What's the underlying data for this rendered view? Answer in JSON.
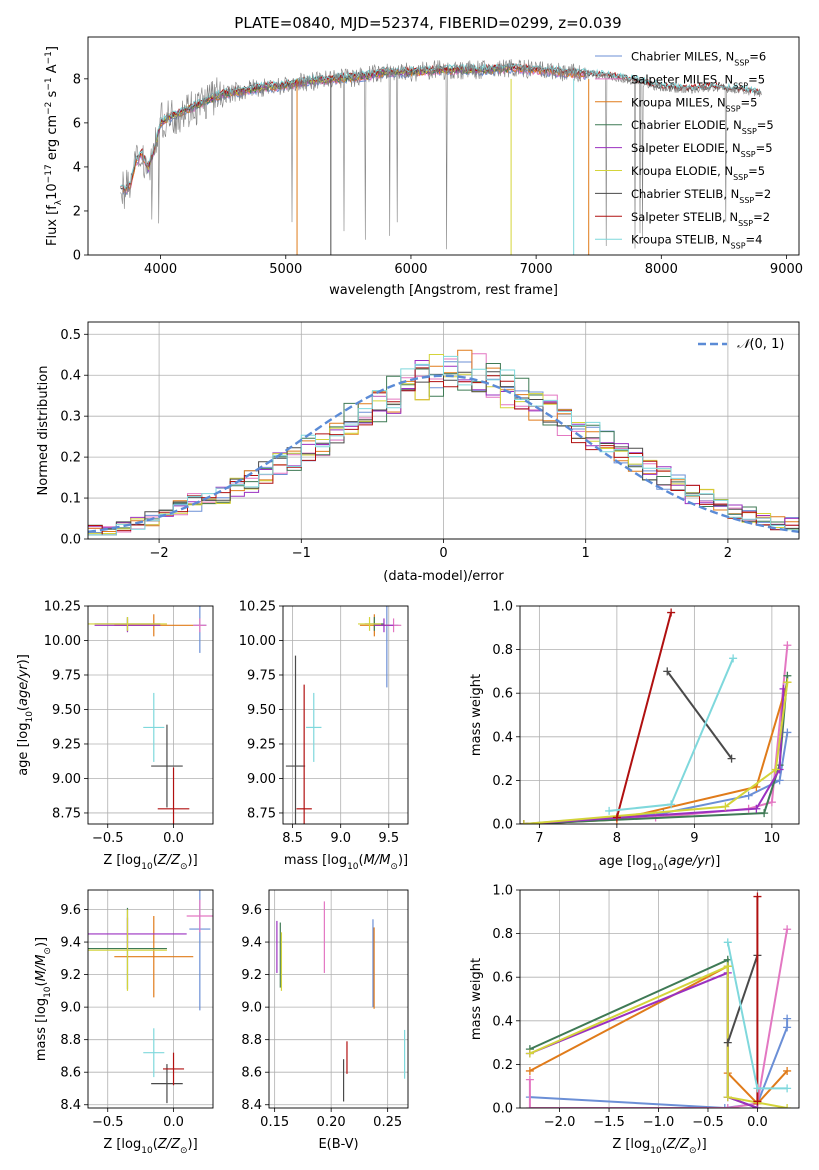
{
  "figure_title": "PLATE=0840, MJD=52374, FIBERID=0299, z=0.039",
  "colors": {
    "grid": "#b0b0b0",
    "data_grey": "#808080",
    "normal_curve": "#5b8bd6",
    "Chabrier MILES": "#6b8fd6",
    "Salpeter MILES": "#e377c2",
    "Kroupa MILES": "#e07b1a",
    "Chabrier ELODIE": "#3f7a55",
    "Salpeter ELODIE": "#9b30c0",
    "Kroupa ELODIE": "#d4d43a",
    "Chabrier STELIB": "#4a4a4a",
    "Salpeter STELIB": "#b01010",
    "Kroupa STELIB": "#7fd8dc"
  },
  "legend": [
    {
      "name": "Chabrier MILES",
      "label": "Chabrier MILES, N",
      "sub": "SSP",
      "tail": "=6"
    },
    {
      "name": "Salpeter MILES",
      "label": "Salpeter MILES, N",
      "sub": "SSP",
      "tail": "=5"
    },
    {
      "name": "Kroupa MILES",
      "label": "Kroupa MILES, N",
      "sub": "SSP",
      "tail": "=5"
    },
    {
      "name": "Chabrier ELODIE",
      "label": "Chabrier ELODIE, N",
      "sub": "SSP",
      "tail": "=5"
    },
    {
      "name": "Salpeter ELODIE",
      "label": "Salpeter ELODIE, N",
      "sub": "SSP",
      "tail": "=5"
    },
    {
      "name": "Kroupa ELODIE",
      "label": "Kroupa ELODIE, N",
      "sub": "SSP",
      "tail": "=5"
    },
    {
      "name": "Chabrier STELIB",
      "label": "Chabrier STELIB, N",
      "sub": "SSP",
      "tail": "=2"
    },
    {
      "name": "Salpeter STELIB",
      "label": "Salpeter STELIB, N",
      "sub": "SSP",
      "tail": "=2"
    },
    {
      "name": "Kroupa STELIB",
      "label": "Kroupa STELIB, N",
      "sub": "SSP",
      "tail": "=4"
    }
  ],
  "chart_data": [
    {
      "id": "spectrum",
      "type": "line",
      "xlabel": "wavelength [Angstrom, rest frame]",
      "ylabel": "Flux [fλ10⁻¹⁷ erg cm⁻² s⁻¹ A⁻¹]",
      "xlim": [
        3420,
        9100
      ],
      "ylim": [
        0,
        9.9
      ],
      "xticks": [
        4000,
        5000,
        6000,
        7000,
        8000,
        9000
      ],
      "yticks": [
        0,
        2,
        4,
        6,
        8
      ],
      "grid": false,
      "legend_position": "upper right",
      "continuum": {
        "x": [
          3680,
          3720,
          3760,
          3800,
          3850,
          3900,
          3950,
          4000,
          4050,
          4100,
          4200,
          4300,
          4400,
          4500,
          4600,
          4800,
          5000,
          5200,
          5400,
          5600,
          5800,
          6000,
          6200,
          6400,
          6600,
          6800,
          7000,
          7200,
          7400,
          7600,
          7800,
          8000,
          8200,
          8400,
          8600,
          8800
        ],
        "y": [
          3.1,
          2.9,
          3.2,
          4.2,
          4.6,
          3.9,
          4.8,
          6.0,
          6.2,
          6.3,
          6.6,
          6.8,
          7.1,
          7.3,
          7.4,
          7.6,
          7.7,
          7.9,
          8.0,
          8.1,
          8.3,
          8.3,
          8.4,
          8.4,
          8.4,
          8.5,
          8.4,
          8.3,
          8.2,
          8.1,
          7.9,
          7.6,
          7.5,
          7.6,
          7.5,
          7.3
        ]
      },
      "series": [
        {
          "name": "Chabrier MILES",
          "x_range": [
            3700,
            7400
          ]
        },
        {
          "name": "Salpeter MILES",
          "x_range": [
            3700,
            7400
          ]
        },
        {
          "name": "Kroupa MILES",
          "x_range": [
            3700,
            7400
          ]
        },
        {
          "name": "Chabrier ELODIE",
          "x_range": [
            3900,
            6800
          ]
        },
        {
          "name": "Salpeter ELODIE",
          "x_range": [
            3900,
            6800
          ]
        },
        {
          "name": "Kroupa ELODIE",
          "x_range": [
            3900,
            6800
          ]
        },
        {
          "name": "Chabrier STELIB",
          "x_range": [
            3680,
            8800
          ]
        },
        {
          "name": "Salpeter STELIB",
          "x_range": [
            3680,
            8800
          ]
        },
        {
          "name": "Kroupa STELIB",
          "x_range": [
            3680,
            8800
          ]
        },
        {
          "name": "data",
          "x_range": [
            3680,
            8800
          ]
        }
      ]
    },
    {
      "id": "residuals",
      "type": "histogram",
      "xlabel": "(data-model)/error",
      "ylabel": "Normed distribution",
      "xlim": [
        -2.5,
        2.5
      ],
      "ylim": [
        0,
        0.53
      ],
      "xticks": [
        -2,
        -1,
        0,
        1,
        2
      ],
      "yticks": [
        0.0,
        0.1,
        0.2,
        0.3,
        0.4,
        0.5
      ],
      "grid": true,
      "legend": "N(0,1)",
      "legend_position": "upper right",
      "bin_width": 0.1,
      "profile": [
        0.02,
        0.02,
        0.03,
        0.04,
        0.05,
        0.06,
        0.08,
        0.09,
        0.1,
        0.11,
        0.13,
        0.14,
        0.16,
        0.18,
        0.2,
        0.22,
        0.24,
        0.26,
        0.29,
        0.31,
        0.33,
        0.35,
        0.37,
        0.39,
        0.4,
        0.41,
        0.41,
        0.4,
        0.39,
        0.37,
        0.35,
        0.33,
        0.31,
        0.29,
        0.27,
        0.25,
        0.23,
        0.21,
        0.19,
        0.17,
        0.15,
        0.13,
        0.11,
        0.1,
        0.08,
        0.07,
        0.06,
        0.05,
        0.04,
        0.04
      ]
    },
    {
      "id": "age_vs_Z",
      "type": "errorbar",
      "xlabel": "Z [log10(Z/Z⊙)]",
      "ylabel": "age  [log10(age/yr)]",
      "xlim": [
        -0.65,
        0.3
      ],
      "ylim": [
        8.67,
        10.25
      ],
      "xticks": [
        -0.5,
        0.0
      ],
      "yticks": [
        8.75,
        9.0,
        9.25,
        9.5,
        9.75,
        10.0,
        10.25
      ],
      "grid": true,
      "points": [
        {
          "name": "Chabrier MILES",
          "x": 0.2,
          "y": 10.11,
          "xerr": 0.05,
          "yerr": 0.2
        },
        {
          "name": "Salpeter MILES",
          "x": 0.2,
          "y": 10.11,
          "xerr": 0.05,
          "yerr": 0.05
        },
        {
          "name": "Kroupa MILES",
          "x": -0.15,
          "y": 10.11,
          "xerr": 0.3,
          "yerr": 0.08
        },
        {
          "name": "Chabrier ELODIE",
          "x": -0.35,
          "y": 10.12,
          "xerr": 0.25,
          "yerr": 0.05
        },
        {
          "name": "Salpeter ELODIE",
          "x": -0.35,
          "y": 10.11,
          "xerr": 0.25,
          "yerr": 0.05
        },
        {
          "name": "Kroupa ELODIE",
          "x": -0.35,
          "y": 10.12,
          "xerr": 0.3,
          "yerr": 0.05
        },
        {
          "name": "Chabrier STELIB",
          "x": -0.05,
          "y": 9.09,
          "xerr": 0.12,
          "yerr": 0.3
        },
        {
          "name": "Salpeter STELIB",
          "x": 0.0,
          "y": 8.78,
          "xerr": 0.12,
          "yerr": 0.3
        },
        {
          "name": "Kroupa STELIB",
          "x": -0.15,
          "y": 9.37,
          "xerr": 0.08,
          "yerr": 0.25
        }
      ]
    },
    {
      "id": "age_vs_mass",
      "type": "errorbar",
      "xlabel": "mass [log10(M/M⊙)]",
      "ylabel": "",
      "xlim": [
        8.4,
        9.7
      ],
      "ylim": [
        8.67,
        10.25
      ],
      "xticks": [
        8.5,
        9.0,
        9.5
      ],
      "yticks": [
        8.75,
        9.0,
        9.25,
        9.5,
        9.75,
        10.0,
        10.25
      ],
      "grid": true,
      "points": [
        {
          "name": "Chabrier MILES",
          "x": 9.48,
          "y": 10.11,
          "xerr": 0.12,
          "yerr": 0.45
        },
        {
          "name": "Salpeter MILES",
          "x": 9.55,
          "y": 10.11,
          "xerr": 0.08,
          "yerr": 0.05
        },
        {
          "name": "Kroupa MILES",
          "x": 9.35,
          "y": 10.11,
          "xerr": 0.15,
          "yerr": 0.08
        },
        {
          "name": "Chabrier ELODIE",
          "x": 9.35,
          "y": 10.12,
          "xerr": 0.1,
          "yerr": 0.05
        },
        {
          "name": "Salpeter ELODIE",
          "x": 9.45,
          "y": 10.11,
          "xerr": 0.1,
          "yerr": 0.05
        },
        {
          "name": "Kroupa ELODIE",
          "x": 9.3,
          "y": 10.12,
          "xerr": 0.12,
          "yerr": 0.05
        },
        {
          "name": "Chabrier STELIB",
          "x": 8.53,
          "y": 9.09,
          "xerr": 0.1,
          "yerr": 0.8
        },
        {
          "name": "Salpeter STELIB",
          "x": 8.62,
          "y": 8.78,
          "xerr": 0.08,
          "yerr": 0.9
        },
        {
          "name": "Kroupa STELIB",
          "x": 8.72,
          "y": 9.37,
          "xerr": 0.08,
          "yerr": 0.25
        }
      ]
    },
    {
      "id": "massweight_vs_age",
      "type": "line",
      "xlabel": "age  [log10(age/yr)]",
      "ylabel": "mass weight",
      "xlim": [
        6.75,
        10.35
      ],
      "ylim": [
        0,
        1.0
      ],
      "xticks": [
        7,
        8,
        9,
        10
      ],
      "yticks": [
        0.0,
        0.2,
        0.4,
        0.6,
        0.8,
        1.0
      ],
      "grid": true,
      "series": [
        {
          "name": "Chabrier MILES",
          "x": [
            6.8,
            8.6,
            9.7,
            10.1,
            10.2
          ],
          "y": [
            0.0,
            0.05,
            0.13,
            0.2,
            0.42
          ]
        },
        {
          "name": "Salpeter MILES",
          "x": [
            6.8,
            8.5,
            9.7,
            10.0,
            10.2
          ],
          "y": [
            0.0,
            0.03,
            0.07,
            0.1,
            0.82
          ]
        },
        {
          "name": "Kroupa MILES",
          "x": [
            6.8,
            8.0,
            9.8,
            10.2
          ],
          "y": [
            0.0,
            0.02,
            0.17,
            0.65
          ]
        },
        {
          "name": "Chabrier ELODIE",
          "x": [
            6.8,
            9.9,
            10.1,
            10.2
          ],
          "y": [
            0.0,
            0.05,
            0.27,
            0.68
          ]
        },
        {
          "name": "Salpeter ELODIE",
          "x": [
            6.8,
            9.8,
            10.1,
            10.15
          ],
          "y": [
            0.0,
            0.07,
            0.25,
            0.62
          ]
        },
        {
          "name": "Kroupa ELODIE",
          "x": [
            6.8,
            9.4,
            10.05,
            10.2
          ],
          "y": [
            0.0,
            0.08,
            0.25,
            0.65
          ]
        },
        {
          "name": "Chabrier STELIB",
          "x": [
            8.65,
            9.48
          ],
          "y": [
            0.7,
            0.3
          ]
        },
        {
          "name": "Salpeter STELIB",
          "x": [
            8.0,
            8.7
          ],
          "y": [
            0.03,
            0.97
          ]
        },
        {
          "name": "Kroupa STELIB",
          "x": [
            7.9,
            8.7,
            9.5
          ],
          "y": [
            0.06,
            0.09,
            0.76
          ]
        }
      ]
    },
    {
      "id": "mass_vs_Z",
      "type": "errorbar",
      "xlabel": "Z [log10(Z/Z⊙)]",
      "ylabel": "mass [log10(M/M⊙)]",
      "xlim": [
        -0.65,
        0.3
      ],
      "ylim": [
        8.38,
        9.72
      ],
      "xticks": [
        -0.5,
        0.0
      ],
      "yticks": [
        8.4,
        8.6,
        8.8,
        9.0,
        9.2,
        9.4,
        9.6
      ],
      "grid": true,
      "points": [
        {
          "name": "Chabrier MILES",
          "x": 0.2,
          "y": 9.48,
          "xerr": 0.08,
          "yerr": 0.5
        },
        {
          "name": "Salpeter MILES",
          "x": 0.2,
          "y": 9.56,
          "xerr": 0.1,
          "yerr": 0.1
        },
        {
          "name": "Kroupa MILES",
          "x": -0.15,
          "y": 9.31,
          "xerr": 0.3,
          "yerr": 0.25
        },
        {
          "name": "Chabrier ELODIE",
          "x": -0.35,
          "y": 9.36,
          "xerr": 0.3,
          "yerr": 0.25
        },
        {
          "name": "Salpeter ELODIE",
          "x": -0.35,
          "y": 9.45,
          "xerr": 0.45,
          "yerr": 0.1
        },
        {
          "name": "Kroupa ELODIE",
          "x": -0.35,
          "y": 9.35,
          "xerr": 0.3,
          "yerr": 0.25
        },
        {
          "name": "Chabrier STELIB",
          "x": -0.05,
          "y": 8.53,
          "xerr": 0.12,
          "yerr": 0.12
        },
        {
          "name": "Salpeter STELIB",
          "x": 0.0,
          "y": 8.62,
          "xerr": 0.08,
          "yerr": 0.1
        },
        {
          "name": "Kroupa STELIB",
          "x": -0.15,
          "y": 8.72,
          "xerr": 0.08,
          "yerr": 0.15
        }
      ]
    },
    {
      "id": "mass_vs_EBV",
      "type": "errorbar",
      "xlabel": "E(B-V)",
      "ylabel": "",
      "xlim": [
        0.145,
        0.268
      ],
      "ylim": [
        8.38,
        9.72
      ],
      "xticks": [
        0.15,
        0.2,
        0.25
      ],
      "yticks": [
        8.4,
        8.6,
        8.8,
        9.0,
        9.2,
        9.4,
        9.6
      ],
      "grid": true,
      "points": [
        {
          "name": "Chabrier MILES",
          "x": 0.237,
          "y": 9.27,
          "xerr": 0,
          "yerr": 0.27
        },
        {
          "name": "Salpeter MILES",
          "x": 0.194,
          "y": 9.43,
          "xerr": 0,
          "yerr": 0.22
        },
        {
          "name": "Kroupa MILES",
          "x": 0.238,
          "y": 9.24,
          "xerr": 0,
          "yerr": 0.25
        },
        {
          "name": "Chabrier ELODIE",
          "x": 0.155,
          "y": 9.32,
          "xerr": 0,
          "yerr": 0.2
        },
        {
          "name": "Salpeter ELODIE",
          "x": 0.152,
          "y": 9.37,
          "xerr": 0,
          "yerr": 0.16
        },
        {
          "name": "Kroupa ELODIE",
          "x": 0.156,
          "y": 9.28,
          "xerr": 0,
          "yerr": 0.18
        },
        {
          "name": "Chabrier STELIB",
          "x": 0.211,
          "y": 8.55,
          "xerr": 0,
          "yerr": 0.13
        },
        {
          "name": "Salpeter STELIB",
          "x": 0.214,
          "y": 8.69,
          "xerr": 0,
          "yerr": 0.1
        },
        {
          "name": "Kroupa STELIB",
          "x": 0.265,
          "y": 8.71,
          "xerr": 0,
          "yerr": 0.15
        }
      ]
    },
    {
      "id": "massweight_vs_Z",
      "type": "line",
      "xlabel": "Z [log10(Z/Z⊙)]",
      "ylabel": "mass weight",
      "xlim": [
        -2.4,
        0.42
      ],
      "ylim": [
        0,
        1.0
      ],
      "xticks": [
        -2.0,
        -1.5,
        -1.0,
        -0.5,
        0.0
      ],
      "xtick_labels": [
        "−2.0",
        "−1.5",
        "−1.0",
        "−0.5",
        "0.0"
      ],
      "yticks": [
        0.0,
        0.2,
        0.4,
        0.6,
        0.8,
        1.0
      ],
      "grid": true,
      "series": [
        {
          "name": "Chabrier MILES",
          "x": [
            -2.3,
            -0.33,
            0.0,
            0.3,
            0.3
          ],
          "y": [
            0.05,
            0.0,
            0.02,
            0.37,
            0.41
          ]
        },
        {
          "name": "Salpeter MILES",
          "x": [
            -2.3,
            -2.3,
            -0.3,
            0.0,
            0.3
          ],
          "y": [
            0.13,
            0.0,
            0.0,
            0.02,
            0.82
          ]
        },
        {
          "name": "Kroupa MILES",
          "x": [
            -2.3,
            -0.3,
            -0.3,
            0.0,
            0.3
          ],
          "y": [
            0.17,
            0.65,
            0.16,
            0.02,
            0.17
          ]
        },
        {
          "name": "Chabrier ELODIE",
          "x": [
            -2.3,
            -0.3,
            -0.3,
            0.0
          ],
          "y": [
            0.27,
            0.68,
            0.05,
            0.0
          ]
        },
        {
          "name": "Salpeter ELODIE",
          "x": [
            -2.3,
            -0.3,
            -0.3,
            0.0
          ],
          "y": [
            0.25,
            0.62,
            0.05,
            0.0
          ]
        },
        {
          "name": "Kroupa ELODIE",
          "x": [
            -2.3,
            -0.3,
            -0.3,
            0.3
          ],
          "y": [
            0.25,
            0.65,
            0.05,
            0.0
          ]
        },
        {
          "name": "Chabrier STELIB",
          "x": [
            -0.3,
            0.0
          ],
          "y": [
            0.3,
            0.7
          ]
        },
        {
          "name": "Salpeter STELIB",
          "x": [
            0.0,
            0.0
          ],
          "y": [
            0.03,
            0.97
          ]
        },
        {
          "name": "Kroupa STELIB",
          "x": [
            -0.3,
            0.0,
            0.3
          ],
          "y": [
            0.76,
            0.09,
            0.09
          ]
        }
      ]
    }
  ]
}
